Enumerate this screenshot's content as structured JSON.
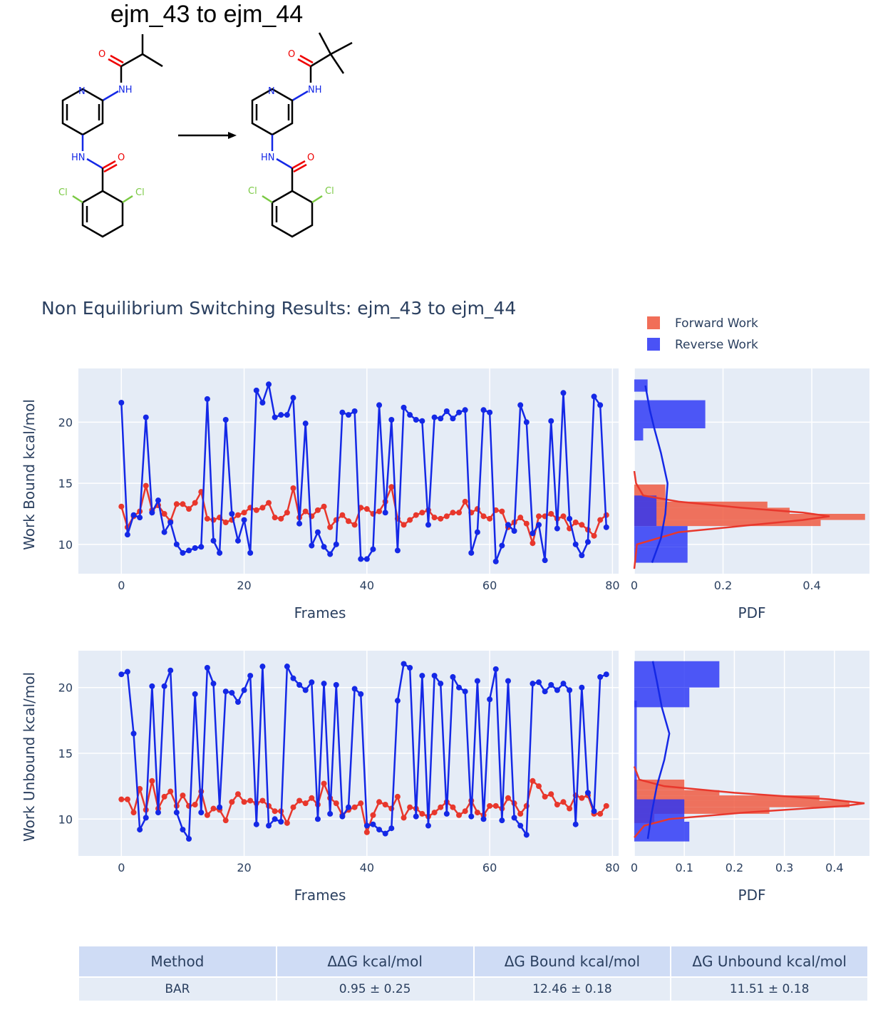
{
  "figure_title": "ejm_43 to ejm_44",
  "plot_title": "Non Equilibrium Switching Results: ejm_43 to ejm_44",
  "molecule_atoms": {
    "o": "O",
    "nh": "NH",
    "n": "N",
    "hn": "HN",
    "cl": "Cl"
  },
  "colors": {
    "forward": "#e8372c",
    "reverse": "#1428e6",
    "forward_hist": "#ef553b",
    "reverse_hist": "#2a34f5",
    "plot_bg": "#e5ecf6",
    "text": "#2a3f5f"
  },
  "chart_data": [
    {
      "type": "line",
      "xlabel": "Frames",
      "ylabel": "Work Bound kcal/mol",
      "xlim": [
        -7,
        81
      ],
      "ylim": [
        7.6,
        24.4
      ],
      "xticks": [
        0,
        20,
        40,
        60,
        80
      ],
      "yticks": [
        10,
        15,
        20
      ],
      "legend": "top-right",
      "series": [
        {
          "name": "Forward Work",
          "color": "forward",
          "values": [
            13.1,
            11.4,
            12.3,
            12.7,
            14.8,
            12.8,
            13.2,
            12.5,
            11.9,
            13.3,
            13.3,
            12.9,
            13.4,
            14.3,
            12.1,
            12.0,
            12.2,
            11.8,
            12.0,
            12.4,
            12.6,
            13.0,
            12.8,
            13.0,
            13.4,
            12.2,
            12.1,
            12.6,
            14.6,
            12.2,
            12.7,
            12.3,
            12.8,
            13.1,
            11.4,
            12.0,
            12.4,
            11.9,
            11.6,
            13.0,
            12.9,
            12.5,
            12.7,
            13.5,
            14.7,
            12.1,
            11.6,
            12.0,
            12.4,
            12.6,
            12.8,
            12.2,
            12.1,
            12.3,
            12.6,
            12.6,
            13.5,
            12.6,
            12.9,
            12.3,
            12.1,
            12.8,
            12.7,
            11.4,
            11.8,
            12.2,
            11.7,
            10.1,
            12.3,
            12.3,
            12.5,
            12.1,
            12.3,
            11.3,
            11.8,
            11.6,
            11.2,
            10.7,
            12.0,
            12.4
          ]
        },
        {
          "name": "Reverse Work",
          "color": "reverse",
          "values": [
            21.6,
            10.8,
            12.4,
            12.2,
            20.4,
            12.6,
            13.6,
            11.0,
            11.8,
            10.0,
            9.3,
            9.5,
            9.7,
            9.8,
            21.9,
            10.3,
            9.3,
            20.2,
            12.5,
            10.3,
            12.0,
            9.3,
            22.6,
            21.6,
            23.1,
            20.4,
            20.6,
            20.6,
            22.0,
            11.7,
            19.9,
            9.9,
            11.0,
            9.8,
            9.2,
            10.0,
            20.8,
            20.6,
            20.9,
            8.8,
            8.8,
            9.6,
            21.4,
            12.6,
            20.2,
            9.5,
            21.2,
            20.6,
            20.2,
            20.1,
            11.6,
            20.4,
            20.3,
            20.9,
            20.3,
            20.8,
            21.0,
            9.3,
            11.0,
            21.0,
            20.8,
            8.6,
            9.9,
            11.6,
            11.1,
            21.4,
            20.0,
            10.9,
            11.6,
            8.7,
            20.1,
            11.3,
            22.4,
            12.1,
            10.0,
            9.1,
            10.2,
            22.1,
            21.4,
            11.4
          ]
        }
      ]
    },
    {
      "type": "bar",
      "orientation": "horizontal",
      "xlabel": "PDF",
      "ylabel": "",
      "xlim": [
        0,
        0.53
      ],
      "ylim": [
        7.6,
        24.4
      ],
      "xticks": [
        0,
        0.2,
        0.4
      ],
      "series": [
        {
          "name": "Forward Work",
          "color": "forward_hist",
          "bins": [
            [
              13.5,
              14.9,
              0.07
            ],
            [
              13.0,
              13.5,
              0.3
            ],
            [
              12.5,
              13.0,
              0.35
            ],
            [
              12.0,
              12.5,
              0.52
            ],
            [
              11.5,
              12.0,
              0.42
            ]
          ],
          "pdf": [
            [
              8.0,
              0
            ],
            [
              10.0,
              0.006
            ],
            [
              11.0,
              0.1
            ],
            [
              11.5,
              0.24
            ],
            [
              12.0,
              0.38
            ],
            [
              12.3,
              0.44
            ],
            [
              12.6,
              0.38
            ],
            [
              13.0,
              0.24
            ],
            [
              13.5,
              0.1
            ],
            [
              14.0,
              0.02
            ],
            [
              15.0,
              0.004
            ],
            [
              16.0,
              0
            ]
          ]
        },
        {
          "name": "Reverse Work",
          "color": "reverse_hist",
          "bins": [
            [
              22.5,
              23.5,
              0.03
            ],
            [
              19.5,
              21.8,
              0.16
            ],
            [
              18.5,
              19.5,
              0.02
            ],
            [
              11.5,
              14.0,
              0.05
            ],
            [
              9.8,
              11.5,
              0.12
            ],
            [
              8.5,
              9.8,
              0.12
            ]
          ],
          "pdf": [
            [
              8.5,
              0.04
            ],
            [
              10.5,
              0.06
            ],
            [
              12.5,
              0.07
            ],
            [
              15.0,
              0.075
            ],
            [
              17.5,
              0.06
            ],
            [
              19.5,
              0.045
            ],
            [
              21.0,
              0.035
            ],
            [
              23.0,
              0.025
            ]
          ]
        }
      ]
    },
    {
      "type": "line",
      "xlabel": "Frames",
      "ylabel": "Work Unbound kcal/mol",
      "xlim": [
        -7,
        81
      ],
      "ylim": [
        7.2,
        22.8
      ],
      "xticks": [
        0,
        20,
        40,
        60,
        80
      ],
      "yticks": [
        10,
        15,
        20
      ],
      "series": [
        {
          "name": "Forward Work",
          "color": "forward",
          "values": [
            11.5,
            11.5,
            10.5,
            12.3,
            10.7,
            12.9,
            10.8,
            11.7,
            12.1,
            11.0,
            11.8,
            11.0,
            11.1,
            12.1,
            10.3,
            10.8,
            10.7,
            9.9,
            11.3,
            11.9,
            11.3,
            11.4,
            11.2,
            11.4,
            11.0,
            10.6,
            10.6,
            9.7,
            10.9,
            11.4,
            11.2,
            11.6,
            11.1,
            12.7,
            11.6,
            11.2,
            10.3,
            10.7,
            10.9,
            11.2,
            9.0,
            10.3,
            11.3,
            11.1,
            10.8,
            11.7,
            10.1,
            10.9,
            10.8,
            10.4,
            10.2,
            10.5,
            10.9,
            11.3,
            10.9,
            10.3,
            10.6,
            11.4,
            10.5,
            10.3,
            11.0,
            11.0,
            10.8,
            11.6,
            11.2,
            10.4,
            11.0,
            12.9,
            12.5,
            11.7,
            11.9,
            11.1,
            11.3,
            10.8,
            11.8,
            11.6,
            11.8,
            10.4,
            10.4,
            11.0
          ]
        },
        {
          "name": "Reverse Work",
          "color": "reverse",
          "values": [
            21.0,
            21.2,
            16.5,
            9.2,
            10.1,
            20.1,
            10.5,
            20.1,
            21.3,
            10.5,
            9.2,
            8.5,
            19.5,
            10.5,
            21.5,
            20.3,
            10.9,
            19.7,
            19.6,
            18.9,
            19.8,
            20.9,
            9.6,
            21.6,
            9.5,
            10.0,
            9.8,
            21.6,
            20.7,
            20.2,
            19.8,
            20.4,
            10.0,
            20.3,
            10.4,
            20.2,
            10.2,
            10.9,
            19.9,
            19.5,
            9.5,
            9.6,
            9.2,
            8.9,
            9.3,
            19.0,
            21.8,
            21.5,
            10.2,
            20.9,
            9.5,
            20.9,
            20.3,
            10.4,
            20.8,
            20.0,
            19.7,
            10.2,
            20.5,
            10.0,
            19.1,
            21.4,
            9.9,
            20.5,
            10.1,
            9.5,
            8.8,
            20.3,
            20.4,
            19.7,
            20.2,
            19.8,
            20.3,
            19.8,
            9.6,
            20.0,
            12.0,
            10.6,
            20.8,
            21.0
          ]
        }
      ]
    },
    {
      "type": "bar",
      "orientation": "horizontal",
      "xlabel": "PDF",
      "ylabel": "",
      "xlim": [
        0,
        0.47
      ],
      "ylim": [
        7.2,
        22.8
      ],
      "xticks": [
        0,
        0.1,
        0.2,
        0.3,
        0.4
      ],
      "series": [
        {
          "name": "Forward Work",
          "color": "forward_hist",
          "bins": [
            [
              12.2,
              13.0,
              0.1
            ],
            [
              11.8,
              12.2,
              0.17
            ],
            [
              11.4,
              11.8,
              0.37
            ],
            [
              10.9,
              11.4,
              0.43
            ],
            [
              10.4,
              10.9,
              0.27
            ],
            [
              9.7,
              10.4,
              0.04
            ]
          ],
          "pdf": [
            [
              8.6,
              0
            ],
            [
              9.5,
              0.02
            ],
            [
              10.0,
              0.07
            ],
            [
              10.5,
              0.22
            ],
            [
              11.0,
              0.42
            ],
            [
              11.2,
              0.46
            ],
            [
              11.5,
              0.39
            ],
            [
              12.0,
              0.2
            ],
            [
              12.5,
              0.06
            ],
            [
              13.0,
              0.01
            ],
            [
              14.0,
              0
            ]
          ]
        },
        {
          "name": "Reverse Work",
          "color": "reverse_hist",
          "bins": [
            [
              20.0,
              22.0,
              0.17
            ],
            [
              18.5,
              20.0,
              0.11
            ],
            [
              11.5,
              19.0,
              0.005
            ],
            [
              9.8,
              11.5,
              0.1
            ],
            [
              8.3,
              9.8,
              0.11
            ]
          ],
          "pdf": [
            [
              8.5,
              0.027
            ],
            [
              10.5,
              0.035
            ],
            [
              12.5,
              0.045
            ],
            [
              14.5,
              0.06
            ],
            [
              16.5,
              0.07
            ],
            [
              18.5,
              0.055
            ],
            [
              20.5,
              0.045
            ],
            [
              22.0,
              0.037
            ]
          ]
        }
      ]
    }
  ],
  "table": {
    "headers": [
      "Method",
      "ΔΔG kcal/mol",
      "ΔG Bound kcal/mol",
      "ΔG Unbound kcal/mol"
    ],
    "rows": [
      [
        "BAR",
        "0.95 ± 0.25",
        "12.46 ± 0.18",
        "11.51 ± 0.18"
      ]
    ]
  }
}
